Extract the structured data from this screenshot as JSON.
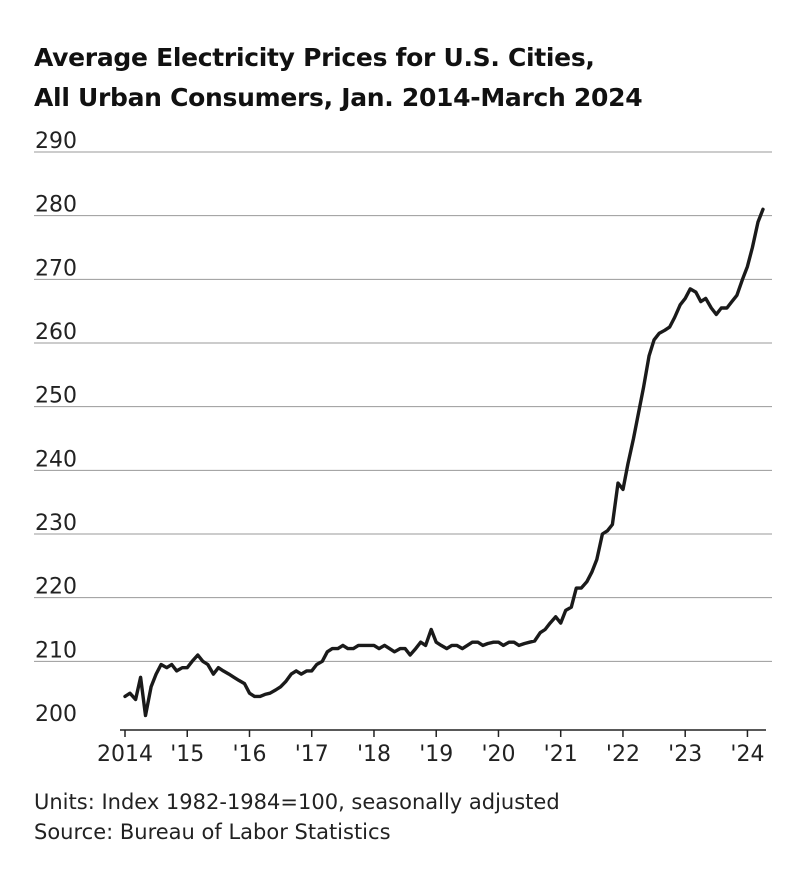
{
  "chart_data": {
    "type": "line",
    "title_line1": "Average Electricity Prices for U.S. Cities,",
    "title_line2": "All Urban Consumers, Jan. 2014-March 2024",
    "xlabel": "",
    "ylabel": "",
    "ylim": [
      200,
      290
    ],
    "yticks": [
      200,
      210,
      220,
      230,
      240,
      250,
      260,
      270,
      280,
      290
    ],
    "xlim": [
      2014,
      2024.25
    ],
    "xticks": [
      {
        "value": 2014,
        "label": "2014"
      },
      {
        "value": 2015,
        "label": "'15"
      },
      {
        "value": 2016,
        "label": "'16"
      },
      {
        "value": 2017,
        "label": "'17"
      },
      {
        "value": 2018,
        "label": "'18"
      },
      {
        "value": 2019,
        "label": "'19"
      },
      {
        "value": 2020,
        "label": "'20"
      },
      {
        "value": 2021,
        "label": "'21"
      },
      {
        "value": 2022,
        "label": "'22"
      },
      {
        "value": 2023,
        "label": "'23"
      },
      {
        "value": 2024,
        "label": "'24"
      }
    ],
    "grid": true,
    "series": [
      {
        "color": "#1a1a1a",
        "points": [
          [
            2014.0,
            204.5
          ],
          [
            2014.08,
            205.0
          ],
          [
            2014.17,
            204.0
          ],
          [
            2014.25,
            207.5
          ],
          [
            2014.33,
            201.5
          ],
          [
            2014.42,
            206.0
          ],
          [
            2014.5,
            208.0
          ],
          [
            2014.58,
            209.5
          ],
          [
            2014.67,
            209.0
          ],
          [
            2014.75,
            209.5
          ],
          [
            2014.83,
            208.5
          ],
          [
            2014.92,
            209.0
          ],
          [
            2015.0,
            209.0
          ],
          [
            2015.08,
            210.0
          ],
          [
            2015.17,
            211.0
          ],
          [
            2015.25,
            210.0
          ],
          [
            2015.33,
            209.5
          ],
          [
            2015.42,
            208.0
          ],
          [
            2015.5,
            209.0
          ],
          [
            2015.58,
            208.5
          ],
          [
            2015.67,
            208.0
          ],
          [
            2015.75,
            207.5
          ],
          [
            2015.83,
            207.0
          ],
          [
            2015.92,
            206.5
          ],
          [
            2016.0,
            205.0
          ],
          [
            2016.08,
            204.5
          ],
          [
            2016.17,
            204.5
          ],
          [
            2016.25,
            204.8
          ],
          [
            2016.33,
            205.0
          ],
          [
            2016.42,
            205.5
          ],
          [
            2016.5,
            206.0
          ],
          [
            2016.58,
            206.8
          ],
          [
            2016.67,
            208.0
          ],
          [
            2016.75,
            208.5
          ],
          [
            2016.83,
            208.0
          ],
          [
            2016.92,
            208.5
          ],
          [
            2017.0,
            208.5
          ],
          [
            2017.08,
            209.5
          ],
          [
            2017.17,
            210.0
          ],
          [
            2017.25,
            211.5
          ],
          [
            2017.33,
            212.0
          ],
          [
            2017.42,
            212.0
          ],
          [
            2017.5,
            212.5
          ],
          [
            2017.58,
            212.0
          ],
          [
            2017.67,
            212.0
          ],
          [
            2017.75,
            212.5
          ],
          [
            2017.83,
            212.5
          ],
          [
            2017.92,
            212.5
          ],
          [
            2018.0,
            212.5
          ],
          [
            2018.08,
            212.0
          ],
          [
            2018.17,
            212.5
          ],
          [
            2018.25,
            212.0
          ],
          [
            2018.33,
            211.5
          ],
          [
            2018.42,
            212.0
          ],
          [
            2018.5,
            212.0
          ],
          [
            2018.58,
            211.0
          ],
          [
            2018.67,
            212.0
          ],
          [
            2018.75,
            213.0
          ],
          [
            2018.83,
            212.5
          ],
          [
            2018.92,
            215.0
          ],
          [
            2019.0,
            213.0
          ],
          [
            2019.08,
            212.5
          ],
          [
            2019.17,
            212.0
          ],
          [
            2019.25,
            212.5
          ],
          [
            2019.33,
            212.5
          ],
          [
            2019.42,
            212.0
          ],
          [
            2019.5,
            212.5
          ],
          [
            2019.58,
            213.0
          ],
          [
            2019.67,
            213.0
          ],
          [
            2019.75,
            212.5
          ],
          [
            2019.83,
            212.8
          ],
          [
            2019.92,
            213.0
          ],
          [
            2020.0,
            213.0
          ],
          [
            2020.08,
            212.5
          ],
          [
            2020.17,
            213.0
          ],
          [
            2020.25,
            213.0
          ],
          [
            2020.33,
            212.5
          ],
          [
            2020.42,
            212.8
          ],
          [
            2020.5,
            213.0
          ],
          [
            2020.58,
            213.2
          ],
          [
            2020.67,
            214.5
          ],
          [
            2020.75,
            215.0
          ],
          [
            2020.83,
            216.0
          ],
          [
            2020.92,
            217.0
          ],
          [
            2021.0,
            216.0
          ],
          [
            2021.08,
            218.0
          ],
          [
            2021.17,
            218.5
          ],
          [
            2021.25,
            221.5
          ],
          [
            2021.33,
            221.5
          ],
          [
            2021.42,
            222.5
          ],
          [
            2021.5,
            224.0
          ],
          [
            2021.58,
            226.0
          ],
          [
            2021.67,
            230.0
          ],
          [
            2021.75,
            230.5
          ],
          [
            2021.83,
            231.5
          ],
          [
            2021.92,
            238.0
          ],
          [
            2022.0,
            237.0
          ],
          [
            2022.08,
            241.0
          ],
          [
            2022.17,
            245.0
          ],
          [
            2022.25,
            249.0
          ],
          [
            2022.33,
            253.0
          ],
          [
            2022.42,
            258.0
          ],
          [
            2022.5,
            260.5
          ],
          [
            2022.58,
            261.5
          ],
          [
            2022.67,
            262.0
          ],
          [
            2022.75,
            262.5
          ],
          [
            2022.83,
            264.0
          ],
          [
            2022.92,
            266.0
          ],
          [
            2023.0,
            267.0
          ],
          [
            2023.08,
            268.5
          ],
          [
            2023.17,
            268.0
          ],
          [
            2023.25,
            266.5
          ],
          [
            2023.33,
            267.0
          ],
          [
            2023.42,
            265.5
          ],
          [
            2023.5,
            264.5
          ],
          [
            2023.58,
            265.5
          ],
          [
            2023.67,
            265.5
          ],
          [
            2023.75,
            266.5
          ],
          [
            2023.83,
            267.5
          ],
          [
            2023.92,
            270.0
          ],
          [
            2024.0,
            272.0
          ],
          [
            2024.08,
            275.0
          ],
          [
            2024.17,
            279.0
          ],
          [
            2024.25,
            281.0
          ]
        ]
      }
    ]
  },
  "footer": {
    "units": "Units: Index 1982-1984=100, seasonally adjusted",
    "source": "Source: Bureau of Labor Statistics"
  }
}
